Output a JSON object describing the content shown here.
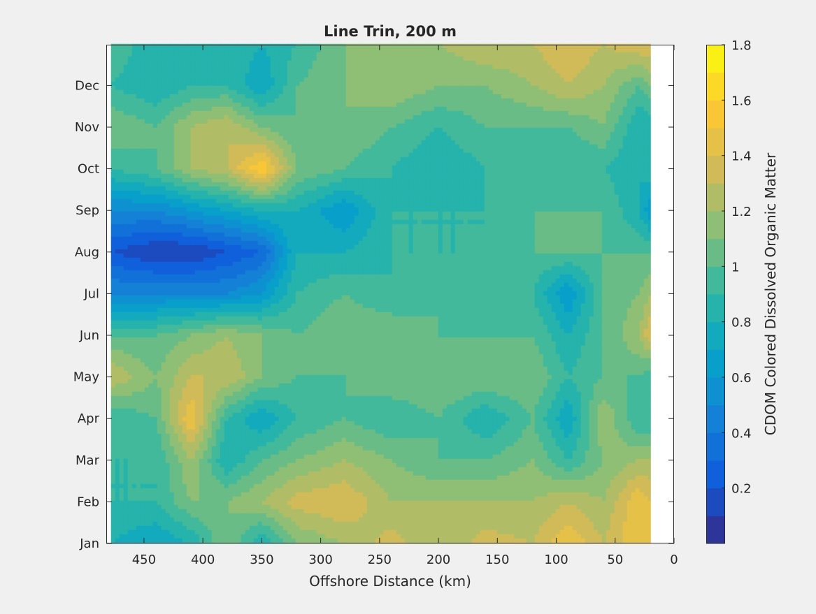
{
  "chart_data": {
    "type": "heatmap",
    "subtype": "filled-contour",
    "title": "Line Trin, 200 m",
    "xlabel": "Offshore Distance (km)",
    "ylabel": "",
    "colorbar_label": "CDOM Colored Dissolved Organic Matter",
    "xlim": [
      0,
      482
    ],
    "x_reversed": true,
    "x_ticks": [
      450,
      400,
      350,
      300,
      250,
      200,
      150,
      100,
      50,
      0
    ],
    "y_tick_labels": [
      "Jan",
      "Feb",
      "Mar",
      "Apr",
      "May",
      "Jun",
      "Jul",
      "Aug",
      "Sep",
      "Oct",
      "Nov",
      "Dec"
    ],
    "colorbar_ticks": [
      "0.2",
      "0.4",
      "0.6",
      "0.8",
      "1",
      "1.2",
      "1.4",
      "1.6",
      "1.8"
    ],
    "clim": [
      0,
      1.8
    ],
    "level_step": 0.1,
    "colormap": "parula",
    "x_km": [
      478,
      440,
      410,
      380,
      350,
      320,
      280,
      240,
      200,
      160,
      120,
      90,
      60,
      30,
      20
    ],
    "y_month": [
      1,
      2,
      3,
      4,
      5,
      6,
      7,
      8,
      9,
      10,
      11,
      12,
      13
    ],
    "z": [
      [
        0.8,
        0.7,
        0.8,
        1.1,
        0.8,
        1.1,
        1.2,
        1.35,
        1.2,
        1.35,
        1.3,
        1.5,
        1.3,
        1.5,
        1.4
      ],
      [
        0.9,
        0.9,
        1.1,
        1.1,
        1.2,
        1.35,
        1.4,
        1.2,
        1.2,
        1.2,
        1.2,
        1.3,
        1.2,
        1.5,
        1.4
      ],
      [
        0.9,
        0.9,
        1.2,
        0.8,
        1.0,
        1.1,
        1.2,
        1.1,
        1.0,
        1.0,
        1.1,
        0.9,
        1.1,
        1.2,
        1.2
      ],
      [
        0.9,
        1.0,
        1.5,
        0.9,
        0.7,
        0.9,
        1.0,
        0.9,
        1.0,
        0.8,
        1.0,
        0.7,
        1.2,
        0.9,
        0.9
      ],
      [
        1.3,
        1.1,
        1.3,
        1.3,
        1.1,
        1.0,
        1.0,
        1.1,
        1.1,
        1.1,
        1.1,
        0.9,
        1.0,
        1.0,
        0.9
      ],
      [
        1.0,
        1.0,
        1.1,
        1.2,
        1.1,
        1.0,
        1.1,
        1.1,
        1.0,
        1.0,
        1.0,
        0.8,
        1.0,
        1.2,
        1.4
      ],
      [
        0.5,
        0.5,
        0.5,
        0.5,
        0.6,
        0.9,
        1.0,
        0.9,
        1.0,
        0.9,
        0.9,
        0.6,
        1.0,
        1.1,
        1.2
      ],
      [
        0.2,
        0.1,
        0.1,
        0.2,
        0.3,
        0.8,
        0.8,
        0.9,
        0.9,
        0.9,
        1.0,
        1.0,
        1.0,
        1.0,
        1.0
      ],
      [
        0.5,
        0.5,
        0.6,
        0.7,
        0.8,
        0.8,
        0.6,
        0.9,
        0.9,
        0.9,
        1.0,
        1.0,
        1.0,
        0.8,
        0.6
      ],
      [
        0.9,
        1.0,
        1.2,
        1.3,
        1.6,
        1.1,
        1.0,
        0.9,
        0.8,
        0.9,
        0.9,
        0.9,
        0.9,
        0.8,
        0.9
      ],
      [
        1.1,
        1.0,
        1.2,
        1.3,
        1.1,
        1.0,
        1.1,
        1.0,
        0.9,
        1.0,
        1.0,
        1.0,
        1.1,
        0.8,
        0.8
      ],
      [
        0.9,
        0.8,
        0.9,
        0.9,
        0.7,
        1.0,
        1.1,
        1.2,
        1.1,
        1.1,
        1.2,
        1.3,
        1.2,
        1.0,
        1.1
      ],
      [
        1.0,
        0.8,
        0.8,
        0.9,
        0.8,
        0.9,
        1.1,
        1.2,
        1.2,
        1.3,
        1.3,
        1.4,
        1.3,
        1.4,
        1.4
      ]
    ]
  }
}
